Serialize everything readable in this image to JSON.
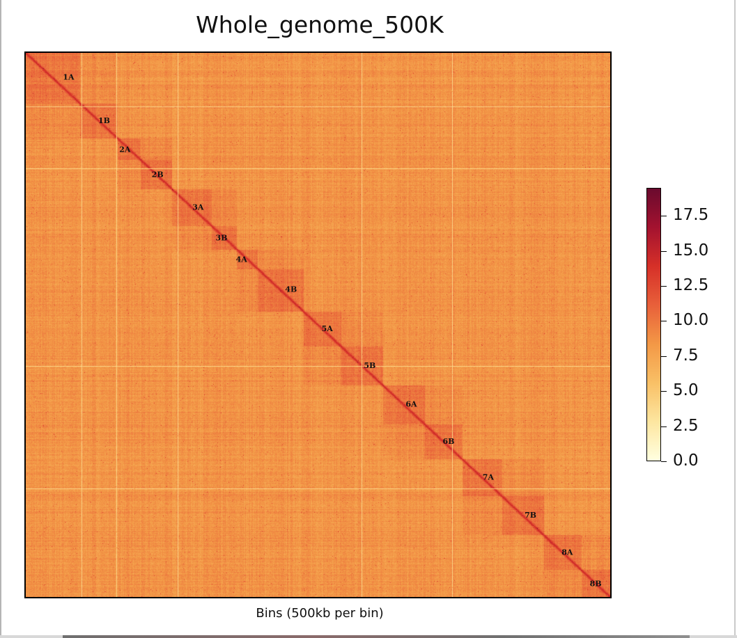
{
  "chart_data": {
    "type": "heatmap",
    "title": "Whole_genome_500K",
    "xlabel": "Bins (500kb per bin)",
    "ylabel": "",
    "blocks": [
      {
        "label": "1A",
        "start": 0,
        "end": 130
      },
      {
        "label": "1B",
        "start": 130,
        "end": 220
      },
      {
        "label": "2A",
        "start": 220,
        "end": 275
      },
      {
        "label": "2B",
        "start": 275,
        "end": 350
      },
      {
        "label": "3A",
        "start": 350,
        "end": 445
      },
      {
        "label": "3B",
        "start": 445,
        "end": 505
      },
      {
        "label": "4A",
        "start": 505,
        "end": 555
      },
      {
        "label": "4B",
        "start": 555,
        "end": 665
      },
      {
        "label": "5A",
        "start": 665,
        "end": 755
      },
      {
        "label": "5B",
        "start": 755,
        "end": 855
      },
      {
        "label": "6A",
        "start": 855,
        "end": 955
      },
      {
        "label": "6B",
        "start": 955,
        "end": 1045
      },
      {
        "label": "7A",
        "start": 1045,
        "end": 1140
      },
      {
        "label": "7B",
        "start": 1140,
        "end": 1240
      },
      {
        "label": "8A",
        "start": 1240,
        "end": 1330
      },
      {
        "label": "8B",
        "start": 1330,
        "end": 1400
      }
    ],
    "total_bins": 1400,
    "colorbar": {
      "min": 0.0,
      "max": 19.5,
      "ticks": [
        0.0,
        2.5,
        5.0,
        7.5,
        10.0,
        12.5,
        15.0,
        17.5
      ],
      "tick_labels": [
        "0.0",
        "2.5",
        "5.0",
        "7.5",
        "10.0",
        "12.5",
        "15.0",
        "17.5"
      ],
      "colormap": [
        "#ffffe0",
        "#fde6a0",
        "#f9c066",
        "#f39846",
        "#e8603a",
        "#d63028",
        "#a3122f",
        "#6a0a2e"
      ]
    },
    "background_level": 8.5,
    "block_level": 9.5,
    "diagonal_level": 14.0
  }
}
